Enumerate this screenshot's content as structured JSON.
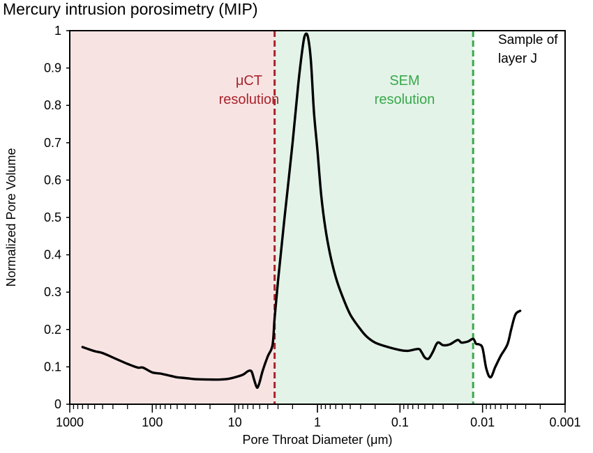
{
  "title": "Mercury intrusion porosimetry (MIP)",
  "chart_data": {
    "type": "line",
    "xlabel": "Pore Throat Diameter (μm)",
    "ylabel": "Normalized Pore Volume",
    "x_scale": "log",
    "x_reversed": true,
    "xlim": [
      1000,
      0.001
    ],
    "ylim": [
      0,
      1
    ],
    "x_ticks": [
      {
        "value": 1000,
        "label": "1000"
      },
      {
        "value": 100,
        "label": "100"
      },
      {
        "value": 10,
        "label": "10"
      },
      {
        "value": 1,
        "label": "1"
      },
      {
        "value": 0.1,
        "label": "0.1"
      },
      {
        "value": 0.01,
        "label": "0.01"
      },
      {
        "value": 0.001,
        "label": "0.001"
      }
    ],
    "y_ticks": [
      {
        "value": 0,
        "label": "0"
      },
      {
        "value": 0.1,
        "label": "0.1"
      },
      {
        "value": 0.2,
        "label": "0.2"
      },
      {
        "value": 0.3,
        "label": "0.3"
      },
      {
        "value": 0.4,
        "label": "0.4"
      },
      {
        "value": 0.5,
        "label": "0.5"
      },
      {
        "value": 0.6,
        "label": "0.6"
      },
      {
        "value": 0.7,
        "label": "0.7"
      },
      {
        "value": 0.8,
        "label": "0.8"
      },
      {
        "value": 0.9,
        "label": "0.9"
      },
      {
        "value": 1,
        "label": "1"
      }
    ],
    "grid": false,
    "regions": [
      {
        "label": "μCT resolution",
        "from": 1000,
        "to": 3.3,
        "fill": "#f8e3e3",
        "line_color": "#a8242b"
      },
      {
        "label": "SEM resolution",
        "from": 3.3,
        "to": 0.013,
        "fill": "#e3f3e8",
        "line_color": "#39a84a"
      }
    ],
    "annotation": "Sample of layer J",
    "series": [
      {
        "color": "#000000",
        "points": [
          [
            700,
            0.153
          ],
          [
            500,
            0.142
          ],
          [
            400,
            0.137
          ],
          [
            300,
            0.125
          ],
          [
            200,
            0.108
          ],
          [
            150,
            0.098
          ],
          [
            130,
            0.098
          ],
          [
            100,
            0.085
          ],
          [
            80,
            0.082
          ],
          [
            60,
            0.076
          ],
          [
            50,
            0.072
          ],
          [
            40,
            0.07
          ],
          [
            30,
            0.067
          ],
          [
            20,
            0.066
          ],
          [
            15,
            0.066
          ],
          [
            12,
            0.068
          ],
          [
            10,
            0.072
          ],
          [
            8,
            0.079
          ],
          [
            7,
            0.088
          ],
          [
            6.5,
            0.09
          ],
          [
            6.2,
            0.085
          ],
          [
            5.8,
            0.063
          ],
          [
            5.5,
            0.048
          ],
          [
            5.3,
            0.045
          ],
          [
            5.0,
            0.06
          ],
          [
            4.6,
            0.09
          ],
          [
            4.0,
            0.128
          ],
          [
            3.5,
            0.158
          ],
          [
            3.3,
            0.23
          ],
          [
            3.0,
            0.33
          ],
          [
            2.5,
            0.5
          ],
          [
            2.0,
            0.7
          ],
          [
            1.7,
            0.86
          ],
          [
            1.5,
            0.96
          ],
          [
            1.4,
            0.99
          ],
          [
            1.3,
            0.982
          ],
          [
            1.2,
            0.92
          ],
          [
            1.1,
            0.78
          ],
          [
            1.0,
            0.68
          ],
          [
            0.9,
            0.56
          ],
          [
            0.8,
            0.47
          ],
          [
            0.7,
            0.4
          ],
          [
            0.6,
            0.34
          ],
          [
            0.5,
            0.29
          ],
          [
            0.4,
            0.24
          ],
          [
            0.3,
            0.2
          ],
          [
            0.25,
            0.18
          ],
          [
            0.2,
            0.165
          ],
          [
            0.15,
            0.155
          ],
          [
            0.1,
            0.145
          ],
          [
            0.08,
            0.143
          ],
          [
            0.06,
            0.148
          ],
          [
            0.055,
            0.14
          ],
          [
            0.05,
            0.125
          ],
          [
            0.045,
            0.122
          ],
          [
            0.04,
            0.14
          ],
          [
            0.035,
            0.165
          ],
          [
            0.03,
            0.158
          ],
          [
            0.025,
            0.16
          ],
          [
            0.02,
            0.172
          ],
          [
            0.018,
            0.165
          ],
          [
            0.015,
            0.168
          ],
          [
            0.013,
            0.175
          ],
          [
            0.012,
            0.162
          ],
          [
            0.011,
            0.16
          ],
          [
            0.01,
            0.15
          ],
          [
            0.009,
            0.095
          ],
          [
            0.008,
            0.072
          ],
          [
            0.007,
            0.1
          ],
          [
            0.006,
            0.13
          ],
          [
            0.005,
            0.16
          ],
          [
            0.0045,
            0.2
          ],
          [
            0.004,
            0.24
          ],
          [
            0.0035,
            0.25
          ]
        ]
      }
    ]
  }
}
